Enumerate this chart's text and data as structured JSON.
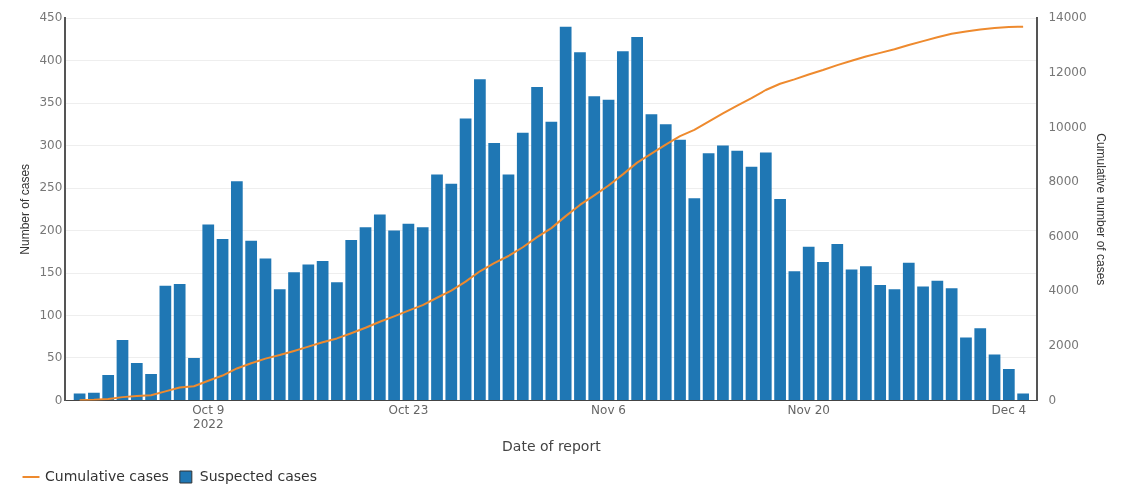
{
  "chart_data": {
    "type": "bar",
    "xlabel": "Date of report",
    "ylabel": "Number of cases",
    "y2label": "Cumulative number of cases",
    "x": [
      "2022-09-30",
      "2022-10-01",
      "2022-10-02",
      "2022-10-03",
      "2022-10-04",
      "2022-10-05",
      "2022-10-06",
      "2022-10-07",
      "2022-10-08",
      "2022-10-09",
      "2022-10-10",
      "2022-10-11",
      "2022-10-12",
      "2022-10-13",
      "2022-10-14",
      "2022-10-15",
      "2022-10-16",
      "2022-10-17",
      "2022-10-18",
      "2022-10-19",
      "2022-10-20",
      "2022-10-21",
      "2022-10-22",
      "2022-10-23",
      "2022-10-24",
      "2022-10-25",
      "2022-10-26",
      "2022-10-27",
      "2022-10-28",
      "2022-10-29",
      "2022-10-30",
      "2022-10-31",
      "2022-11-01",
      "2022-11-02",
      "2022-11-03",
      "2022-11-04",
      "2022-11-05",
      "2022-11-06",
      "2022-11-07",
      "2022-11-08",
      "2022-11-09",
      "2022-11-10",
      "2022-11-11",
      "2022-11-12",
      "2022-11-13",
      "2022-11-14",
      "2022-11-15",
      "2022-11-16",
      "2022-11-17",
      "2022-11-18",
      "2022-11-19",
      "2022-11-20",
      "2022-11-21",
      "2022-11-22",
      "2022-11-23",
      "2022-11-24",
      "2022-11-25",
      "2022-11-26",
      "2022-11-27",
      "2022-11-28",
      "2022-11-29",
      "2022-11-30",
      "2022-12-01",
      "2022-12-02",
      "2022-12-03",
      "2022-12-04",
      "2022-12-05"
    ],
    "series": [
      {
        "name": "Cumulative cases",
        "type": "line",
        "axis": "y2",
        "color": "#ee8a2e",
        "marker": "none",
        "values": [
          10,
          20,
          50,
          120,
          160,
          190,
          330,
          470,
          520,
          720,
          910,
          1170,
          1360,
          1530,
          1660,
          1810,
          1970,
          2130,
          2270,
          2460,
          2660,
          2880,
          3080,
          3290,
          3490,
          3760,
          4020,
          4350,
          4730,
          5030,
          5290,
          5610,
          5980,
          6310,
          6750,
          7160,
          7510,
          7870,
          8280,
          8710,
          9040,
          9370,
          9680,
          9910,
          10210,
          10510,
          10800,
          11070,
          11370,
          11600,
          11760,
          11940,
          12100,
          12280,
          12440,
          12600,
          12730,
          12860,
          13020,
          13160,
          13300,
          13430,
          13510,
          13590,
          13640,
          13680,
          13690
        ]
      },
      {
        "name": "Suspected cases",
        "color": "#1f77b4",
        "values": [
          8,
          9,
          30,
          71,
          44,
          31,
          135,
          137,
          50,
          207,
          190,
          258,
          188,
          167,
          131,
          151,
          160,
          164,
          139,
          189,
          204,
          219,
          200,
          208,
          204,
          266,
          255,
          332,
          378,
          303,
          266,
          315,
          369,
          328,
          440,
          410,
          358,
          354,
          411,
          428,
          337,
          325,
          307,
          238,
          291,
          300,
          294,
          275,
          292,
          237,
          152,
          181,
          163,
          184,
          154,
          158,
          136,
          131,
          162,
          134,
          141,
          132,
          74,
          85,
          54,
          37,
          8
        ]
      }
    ],
    "xlim": [
      "2022-09-29",
      "2022-12-06"
    ],
    "xticks": [
      {
        "value": "2022-10-09",
        "label": "Oct 9\n2022"
      },
      {
        "value": "2022-10-23",
        "label": "Oct 23"
      },
      {
        "value": "2022-11-06",
        "label": "Nov 6"
      },
      {
        "value": "2022-11-20",
        "label": "Nov 20"
      },
      {
        "value": "2022-12-04",
        "label": "Dec 4"
      }
    ],
    "ylim": [
      0,
      450
    ],
    "yticks": [
      0,
      50,
      100,
      150,
      200,
      250,
      300,
      350,
      400,
      450
    ],
    "y2lim": [
      0,
      14000
    ],
    "y2ticks": [
      0,
      2000,
      4000,
      6000,
      8000,
      10000,
      12000,
      14000
    ],
    "grid": "y",
    "legend": "bottom"
  }
}
